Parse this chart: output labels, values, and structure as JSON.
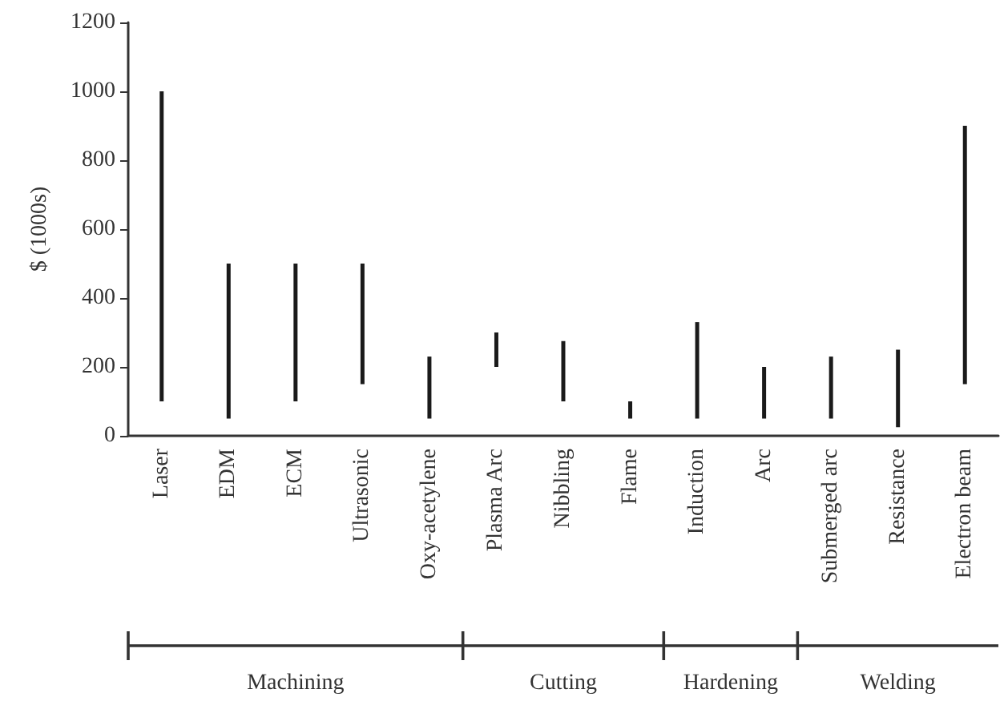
{
  "chart_data": {
    "type": "bar",
    "ylabel": "$ (1000s)",
    "categories": [
      "Laser",
      "EDM",
      "ECM",
      "Ultrasonic",
      "Oxy-acetylene",
      "Plasma Arc",
      "Nibbling",
      "Flame",
      "Induction",
      "Arc",
      "Submerged arc",
      "Resistance",
      "Electron beam"
    ],
    "base": [
      100,
      50,
      100,
      150,
      50,
      200,
      100,
      50,
      50,
      50,
      50,
      25,
      150
    ],
    "values": [
      900,
      450,
      400,
      350,
      180,
      100,
      175,
      50,
      280,
      150,
      180,
      225,
      750
    ],
    "color": "#1a1a1a",
    "ylim": [
      0,
      1200
    ],
    "yticks": [
      0,
      200,
      400,
      600,
      800,
      1000,
      1200
    ],
    "grid": false,
    "annotations": [
      "Machining",
      "Cutting",
      "Hardening",
      "Welding"
    ]
  }
}
